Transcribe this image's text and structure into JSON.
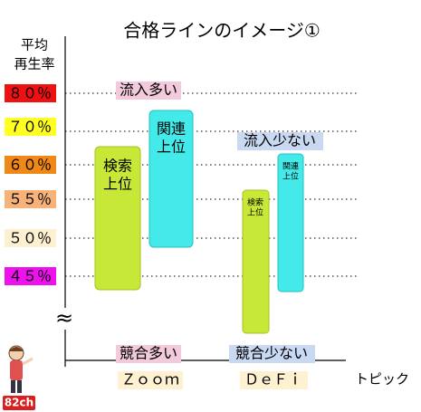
{
  "header": {
    "title": "合格ラインのイメージ①",
    "y_axis_label": [
      "平均",
      "再生率"
    ]
  },
  "levels": [
    "８０％",
    "７０％",
    "６０％",
    "５５％",
    "５０％",
    "４５％"
  ],
  "boxes": [
    {
      "label": [
        "検索",
        "上位"
      ]
    },
    {
      "label": [
        "関連",
        "上位"
      ]
    },
    {
      "label": [
        "検索",
        "上位"
      ]
    },
    {
      "label": [
        "関連",
        "上位"
      ]
    }
  ],
  "annotations": {
    "high_inflow": "流入多い",
    "low_inflow": "流入少ない",
    "high_competition": "競合多い",
    "low_competition": "競合少ない"
  },
  "topics": [
    "Ｚｏｏｍ",
    "ＤｅＦｉ"
  ],
  "x_axis_label": "トピック",
  "break_mark": "≈",
  "badge": "82ch"
}
